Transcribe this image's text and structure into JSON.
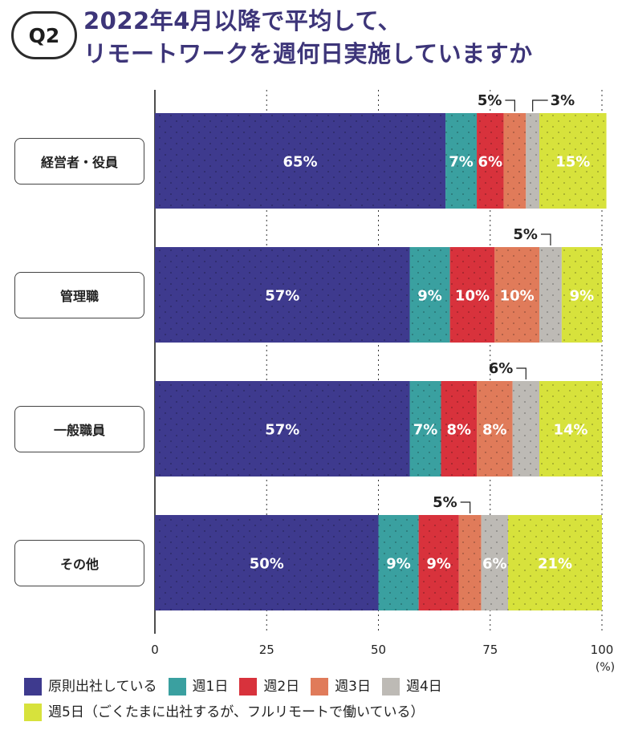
{
  "badge": "Q2",
  "title": {
    "line1": "2022年4月以降で平均して、",
    "line2": "リモートワークを週何日実施していますか"
  },
  "chart_data": {
    "type": "bar",
    "orientation": "horizontal",
    "stacked": true,
    "categories": [
      "経営者・役員",
      "管理職",
      "一般職員",
      "その他"
    ],
    "series": [
      {
        "name": "原則出社している",
        "color": "#3e3a8e",
        "values": [
          65,
          57,
          57,
          50
        ],
        "labels": [
          "65%",
          "57%",
          "57%",
          "50%"
        ]
      },
      {
        "name": "週1日",
        "color": "#3aa0a0",
        "values": [
          7,
          9,
          7,
          9
        ],
        "labels": [
          "7%",
          "9%",
          "7%",
          "9%"
        ]
      },
      {
        "name": "週2日",
        "color": "#d8323c",
        "values": [
          6,
          10,
          8,
          9
        ],
        "labels": [
          "6%",
          "10%",
          "8%",
          "9%"
        ]
      },
      {
        "name": "週3日",
        "color": "#e07b5a",
        "values": [
          5,
          10,
          8,
          5
        ],
        "labels": [
          "5%",
          "10%",
          "8%",
          "5%"
        ]
      },
      {
        "name": "週4日",
        "color": "#bdbab5",
        "values": [
          3,
          5,
          6,
          6
        ],
        "labels": [
          "3%",
          "5%",
          "6%",
          "6%"
        ]
      },
      {
        "name": "週5日（ごくたまに出社するが、フルリモートで働いている）",
        "color": "#d7e23c",
        "values": [
          15,
          9,
          14,
          21
        ],
        "labels": [
          "15%",
          "9%",
          "14%",
          "21%"
        ]
      }
    ],
    "callouts": [
      {
        "category_index": 0,
        "series_index": 3,
        "text": "5%"
      },
      {
        "category_index": 0,
        "series_index": 4,
        "text": "3%"
      },
      {
        "category_index": 1,
        "series_index": 4,
        "text": "5%"
      },
      {
        "category_index": 2,
        "series_index": 4,
        "text": "6%"
      },
      {
        "category_index": 3,
        "series_index": 3,
        "text": "5%"
      }
    ],
    "xlim": [
      0,
      100
    ],
    "xticks": [
      "0",
      "25",
      "50",
      "75",
      "100"
    ],
    "xunit": "(%)",
    "grid": true,
    "legend": "bottom"
  }
}
